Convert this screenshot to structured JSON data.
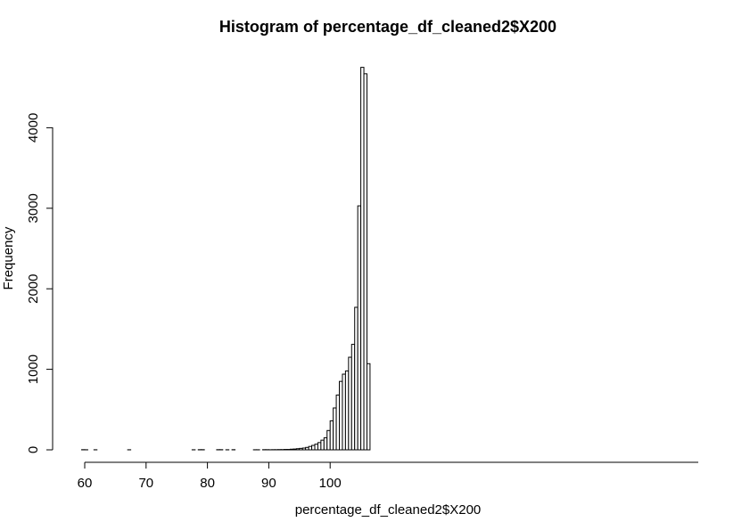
{
  "chart_data": {
    "type": "bar",
    "title": "Histogram of percentage_df_cleaned2$X200",
    "xlabel": "percentage_df_cleaned2$X200",
    "ylabel": "Frequency",
    "xlim": [
      59.5,
      100
    ],
    "ylim": [
      0,
      4750
    ],
    "x_ticks": [
      60,
      70,
      80,
      90,
      100
    ],
    "y_ticks": [
      0,
      1000,
      2000,
      3000,
      4000
    ],
    "bin_width": 0.5,
    "bins_start": 59.5,
    "values": [
      2,
      1,
      0,
      0,
      1,
      0,
      0,
      0,
      0,
      0,
      0,
      0,
      0,
      0,
      0,
      1,
      0,
      0,
      0,
      0,
      0,
      0,
      0,
      0,
      0,
      0,
      0,
      0,
      0,
      0,
      0,
      0,
      0,
      0,
      0,
      0,
      1,
      0,
      2,
      2,
      0,
      0,
      0,
      0,
      2,
      2,
      0,
      1,
      0,
      2,
      0,
      0,
      0,
      0,
      0,
      0,
      1,
      1,
      0,
      2,
      2,
      1,
      2,
      2,
      3,
      3,
      5,
      5,
      8,
      10,
      14,
      18,
      22,
      30,
      42,
      55,
      70,
      90,
      120,
      150,
      240,
      360,
      520,
      680,
      850,
      940,
      980,
      1150,
      1310,
      1770,
      3030,
      4750,
      4670,
      1070
    ]
  }
}
